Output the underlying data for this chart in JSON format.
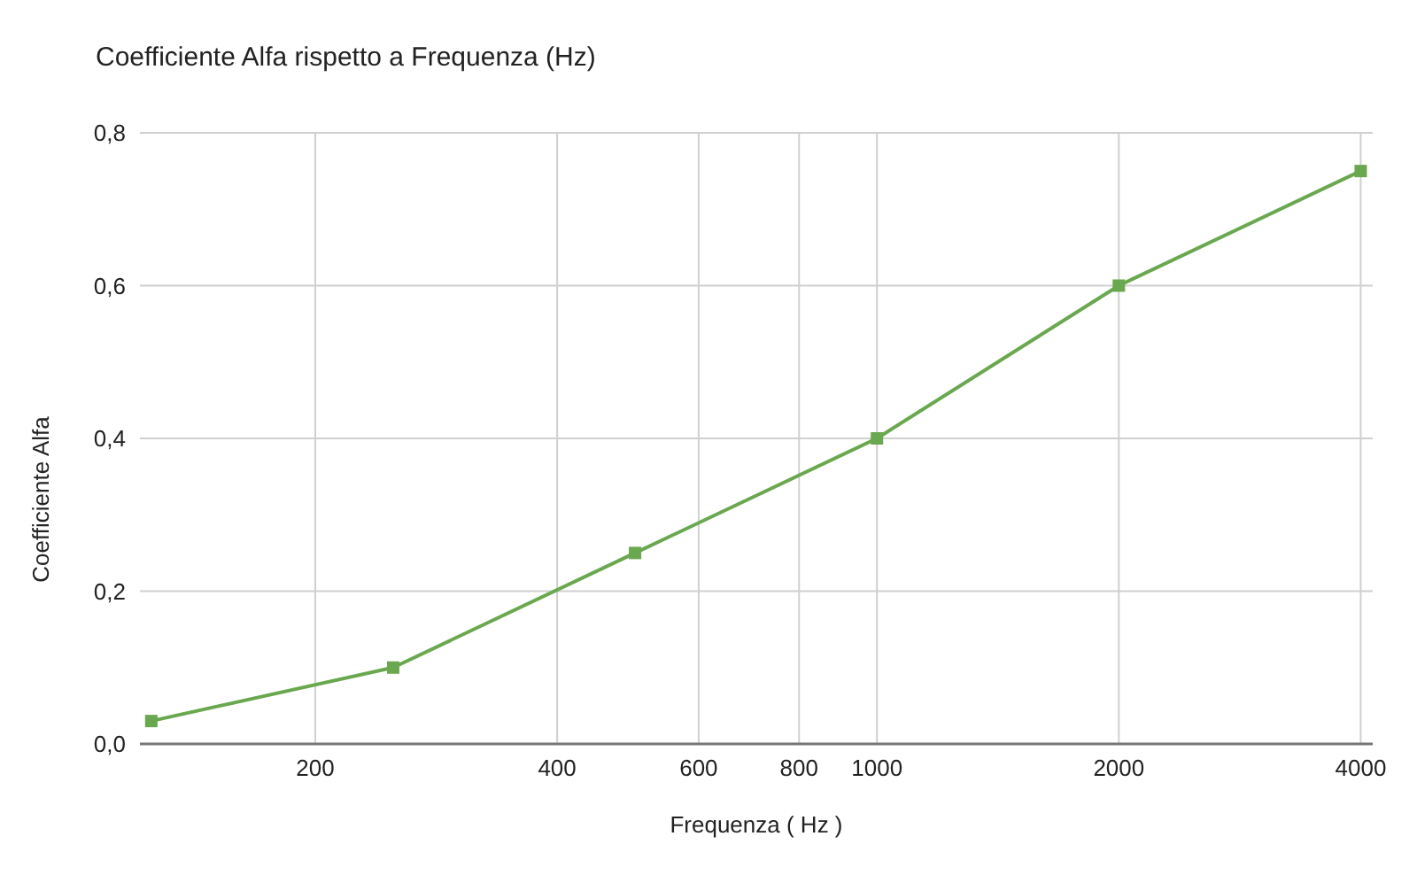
{
  "chart_data": {
    "type": "line",
    "title": "Coefficiente Alfa rispetto a Frequenza (Hz)",
    "xlabel": "Frequenza ( Hz )",
    "ylabel": "Coefficiente Alfa",
    "x": [
      125,
      250,
      500,
      1000,
      2000,
      4000
    ],
    "series": [
      {
        "color": "#6aa84f",
        "values": [
          0.03,
          0.1,
          0.25,
          0.4,
          0.6,
          0.75
        ]
      }
    ],
    "log": "x",
    "xlim": [
      121,
      4140
    ],
    "xticks": [
      200,
      400,
      600,
      800,
      1000,
      2000,
      4000
    ],
    "ylim": [
      0,
      0.8
    ],
    "yticks": [
      {
        "value": 0,
        "label": "0,0"
      },
      {
        "value": 0.2,
        "label": "0,2"
      },
      {
        "value": 0.4,
        "label": "0,4"
      },
      {
        "value": 0.6,
        "label": "0,6"
      },
      {
        "value": 0.8,
        "label": "0,8"
      }
    ],
    "grid": true,
    "marker": "square",
    "line_style": "solid"
  }
}
